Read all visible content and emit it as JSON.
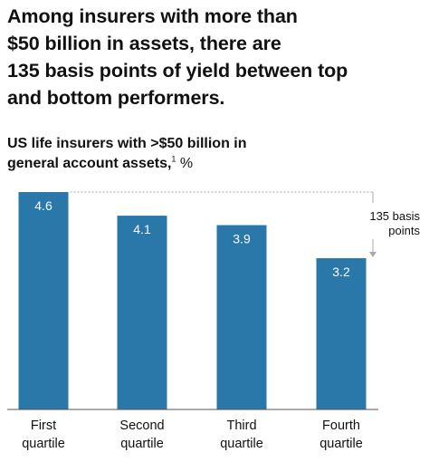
{
  "headline": {
    "lines": [
      "Among insurers with more than",
      "$50 billion in assets, there are",
      "135 basis points of yield between top",
      "and bottom performers."
    ]
  },
  "subtitle": {
    "line1": "US life insurers with >$50 billion in",
    "line2": "general account assets,",
    "footnote": "1",
    "unit": " %"
  },
  "colors": {
    "bar": "#2a78aa",
    "axis": "#555555",
    "label": "#ffffff"
  },
  "chart_data": {
    "type": "bar",
    "categories": [
      [
        "First",
        "quartile"
      ],
      [
        "Second",
        "quartile"
      ],
      [
        "Third",
        "quartile"
      ],
      [
        "Fourth",
        "quartile"
      ]
    ],
    "values": [
      4.6,
      4.1,
      3.9,
      3.2
    ],
    "value_labels": [
      "4.6",
      "4.1",
      "3.9",
      "3.2"
    ],
    "ylim": [
      0,
      4.6
    ],
    "grid": false,
    "annotation": {
      "lines": [
        "135 basis",
        "points"
      ],
      "from_bar": 0,
      "to_bar": 3
    }
  }
}
